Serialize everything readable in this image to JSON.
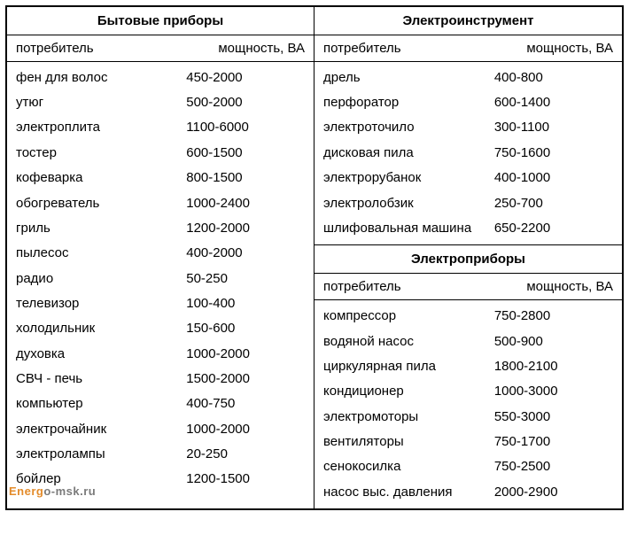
{
  "watermark": {
    "part1": "Energ",
    "part2": "o-msk.ru"
  },
  "col_header_consumer": "потребитель",
  "col_header_power": "мощность, ВА",
  "left": {
    "title": "Бытовые приборы",
    "rows": [
      {
        "name": "фен для волос",
        "power": "450-2000"
      },
      {
        "name": "утюг",
        "power": "500-2000"
      },
      {
        "name": "электроплита",
        "power": "1100-6000"
      },
      {
        "name": "тостер",
        "power": "600-1500"
      },
      {
        "name": "кофеварка",
        "power": "800-1500"
      },
      {
        "name": "обогреватель",
        "power": "1000-2400"
      },
      {
        "name": "гриль",
        "power": "1200-2000"
      },
      {
        "name": "пылесос",
        "power": "400-2000"
      },
      {
        "name": "радио",
        "power": "50-250"
      },
      {
        "name": "телевизор",
        "power": "100-400"
      },
      {
        "name": "холодильник",
        "power": "150-600"
      },
      {
        "name": "духовка",
        "power": "1000-2000"
      },
      {
        "name": "СВЧ - печь",
        "power": "1500-2000"
      },
      {
        "name": "компьютер",
        "power": "400-750"
      },
      {
        "name": "электрочайник",
        "power": "1000-2000"
      },
      {
        "name": "электролампы",
        "power": "20-250"
      },
      {
        "name": "бойлер",
        "power": "1200-1500"
      }
    ]
  },
  "right_top": {
    "title": "Электроинструмент",
    "rows": [
      {
        "name": "дрель",
        "power": "400-800"
      },
      {
        "name": "перфоратор",
        "power": "600-1400"
      },
      {
        "name": "электроточило",
        "power": "300-1100"
      },
      {
        "name": "дисковая пила",
        "power": "750-1600"
      },
      {
        "name": "электрорубанок",
        "power": "400-1000"
      },
      {
        "name": "электролобзик",
        "power": "250-700"
      },
      {
        "name": "шлифовальная машина",
        "power": "650-2200"
      }
    ]
  },
  "right_bottom": {
    "title": "Электроприборы",
    "rows": [
      {
        "name": "компрессор",
        "power": "750-2800"
      },
      {
        "name": "водяной насос",
        "power": "500-900"
      },
      {
        "name": "циркулярная пила",
        "power": "1800-2100"
      },
      {
        "name": "кондиционер",
        "power": "1000-3000"
      },
      {
        "name": "электромоторы",
        "power": "550-3000"
      },
      {
        "name": "вентиляторы",
        "power": "750-1700"
      },
      {
        "name": "сенокосилка",
        "power": "750-2500"
      },
      {
        "name": "насос выс. давления",
        "power": "2000-2900"
      }
    ]
  }
}
